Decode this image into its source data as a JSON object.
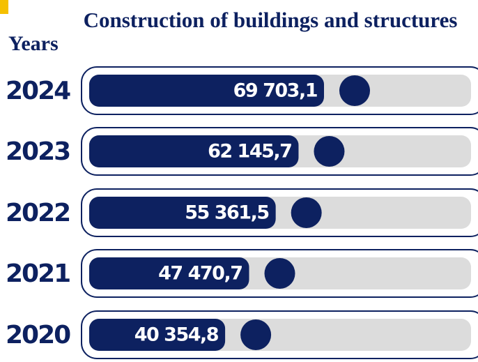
{
  "chart_data": {
    "type": "bar",
    "orientation": "horizontal",
    "title": "Construction of buildings and structures",
    "category_label": "Years",
    "categories": [
      "2024",
      "2023",
      "2022",
      "2021",
      "2020"
    ],
    "values": [
      69703.1,
      62145.7,
      55361.5,
      47470.7,
      40354.8
    ],
    "value_labels": [
      "69 703,1",
      "62 145,7",
      "55 361,5",
      "47 470,7",
      "40 354,8"
    ],
    "color": "#0d2160",
    "track_color": "#dcdcdc"
  }
}
